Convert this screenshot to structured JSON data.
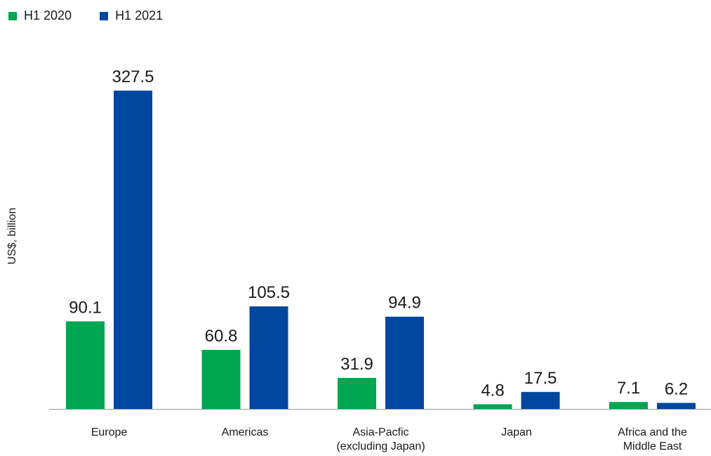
{
  "chart_data": {
    "type": "bar",
    "title": "",
    "xlabel": "",
    "ylabel": "US$, billion",
    "ylim": [
      0,
      360
    ],
    "grid": false,
    "legend_position": "top-left",
    "categories": [
      [
        "Europe"
      ],
      [
        "Americas"
      ],
      [
        "Asia-Pacfic",
        "(excluding Japan)"
      ],
      [
        "Japan"
      ],
      [
        "Africa and the",
        "Middle East"
      ]
    ],
    "series": [
      {
        "name": "H1 2020",
        "color": "#00a651",
        "values": [
          90.1,
          60.8,
          31.9,
          4.8,
          7.1
        ]
      },
      {
        "name": "H1 2021",
        "color": "#0047a0",
        "values": [
          327.5,
          105.5,
          94.9,
          17.5,
          6.2
        ]
      }
    ]
  }
}
